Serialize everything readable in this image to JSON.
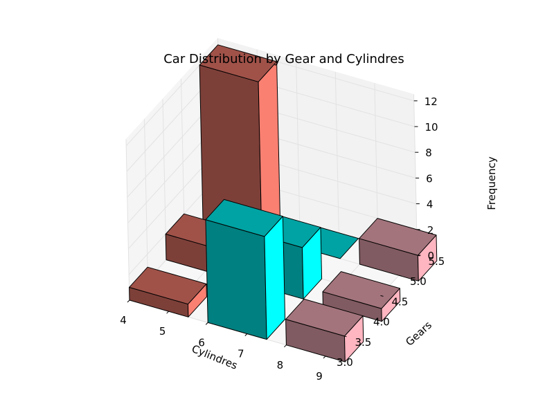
{
  "chart_data": {
    "type": "bar3d",
    "title": "Car Distribution by Gear and Cylindres",
    "xlabel": "Cylindres",
    "ylabel": "Gears",
    "zlabel": "Frequency",
    "x_ticks": [
      "4",
      "5",
      "6",
      "7",
      "8",
      "9"
    ],
    "y_ticks": [
      "3.0",
      "3.5",
      "4.0",
      "4.5",
      "5.0",
      "5.5"
    ],
    "z_ticks": [
      "0",
      "2",
      "4",
      "6",
      "8",
      "10",
      "12"
    ],
    "bars": [
      {
        "cylinders": 4,
        "gears": 3,
        "frequency": 1,
        "color": "#fa8072"
      },
      {
        "cylinders": 4,
        "gears": 4,
        "frequency": 2,
        "color": "#fa8072"
      },
      {
        "cylinders": 4,
        "gears": 5,
        "frequency": 12,
        "color": "#fa8072"
      },
      {
        "cylinders": 6,
        "gears": 3,
        "frequency": 8,
        "color": "#00ffff"
      },
      {
        "cylinders": 6,
        "gears": 4,
        "frequency": 4,
        "color": "#00ffff"
      },
      {
        "cylinders": 6,
        "gears": 5,
        "frequency": 0,
        "color": "#00ffff"
      },
      {
        "cylinders": 8,
        "gears": 3,
        "frequency": 2,
        "color": "#ffb6c1"
      },
      {
        "cylinders": 8,
        "gears": 4,
        "frequency": 1,
        "color": "#ffb6c1"
      },
      {
        "cylinders": 8,
        "gears": 5,
        "frequency": 2,
        "color": "#ffb6c1"
      }
    ]
  }
}
